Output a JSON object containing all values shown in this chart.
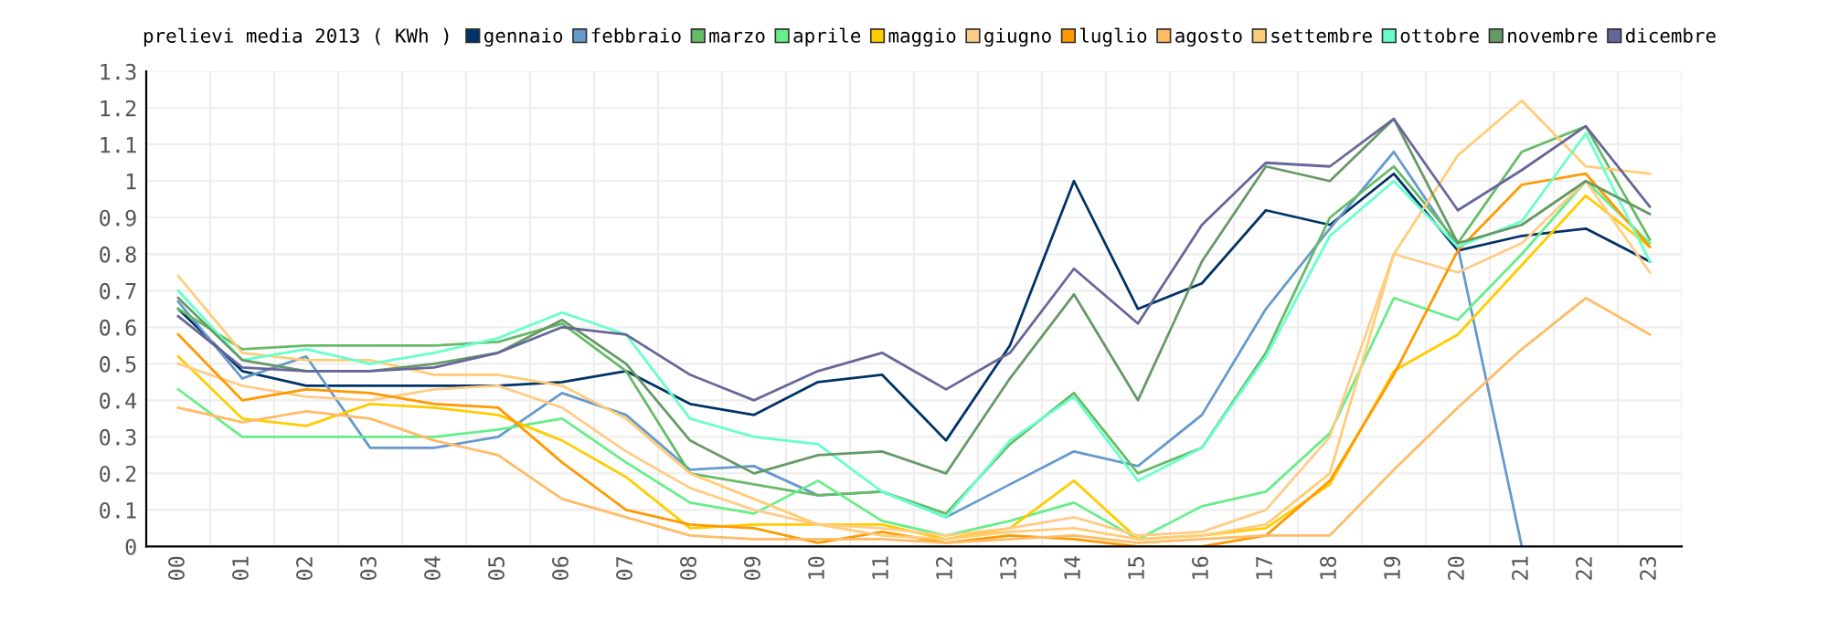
{
  "chart_data": {
    "type": "line",
    "title": "prelievi media 2013 ( KWh )",
    "categories": [
      "00",
      "01",
      "02",
      "03",
      "04",
      "05",
      "06",
      "07",
      "08",
      "09",
      "10",
      "11",
      "12",
      "13",
      "14",
      "15",
      "16",
      "17",
      "18",
      "19",
      "20",
      "21",
      "22",
      "23"
    ],
    "series": [
      {
        "name": "gennaio",
        "color": "#003366",
        "values": [
          0.65,
          0.48,
          0.44,
          0.44,
          0.44,
          0.44,
          0.45,
          0.48,
          0.39,
          0.36,
          0.45,
          0.47,
          0.29,
          0.55,
          1.0,
          0.65,
          0.72,
          0.92,
          0.88,
          1.02,
          0.81,
          0.85,
          0.87,
          0.78
        ]
      },
      {
        "name": "febbraio",
        "color": "#6699cc",
        "values": [
          0.67,
          0.46,
          0.52,
          0.27,
          0.27,
          0.3,
          0.42,
          0.36,
          0.21,
          0.22,
          0.14,
          0.15,
          0.08,
          0.17,
          0.26,
          0.22,
          0.36,
          0.65,
          0.87,
          1.08,
          0.82,
          0,
          null,
          null
        ]
      },
      {
        "name": "marzo",
        "color": "#66bb66",
        "values": [
          0.65,
          0.54,
          0.55,
          0.55,
          0.55,
          0.56,
          0.61,
          0.48,
          0.2,
          0.17,
          0.14,
          0.15,
          0.09,
          0.28,
          0.42,
          0.2,
          0.27,
          0.53,
          0.9,
          1.04,
          0.83,
          1.08,
          1.15,
          0.84
        ]
      },
      {
        "name": "aprile",
        "color": "#66ee88",
        "values": [
          0.43,
          0.3,
          0.3,
          0.3,
          0.3,
          0.32,
          0.35,
          0.23,
          0.12,
          0.09,
          0.18,
          0.07,
          0.03,
          0.07,
          0.12,
          0.02,
          0.11,
          0.15,
          0.31,
          0.68,
          0.62,
          0.8,
          1.0,
          0.83
        ]
      },
      {
        "name": "maggio",
        "color": "#ffcc00",
        "values": [
          0.52,
          0.35,
          0.33,
          0.39,
          0.38,
          0.36,
          0.29,
          0.19,
          0.05,
          0.06,
          0.06,
          0.06,
          0.02,
          0.05,
          0.18,
          0.02,
          0.03,
          0.05,
          0.17,
          0.48,
          0.58,
          0.77,
          0.96,
          0.82
        ]
      },
      {
        "name": "giugno",
        "color": "#ffcc88",
        "values": [
          0.5,
          0.44,
          0.41,
          0.4,
          0.43,
          0.44,
          0.38,
          0.26,
          0.16,
          0.1,
          0.06,
          0.05,
          0.03,
          0.05,
          0.08,
          0.03,
          0.04,
          0.1,
          0.3,
          0.8,
          0.75,
          0.83,
          1.0,
          0.75
        ]
      },
      {
        "name": "luglio",
        "color": "#ff9900",
        "values": [
          0.58,
          0.4,
          0.43,
          0.42,
          0.39,
          0.38,
          0.23,
          0.1,
          0.06,
          0.05,
          0.01,
          0.04,
          0.01,
          0.03,
          0.02,
          0.0,
          0.0,
          0.03,
          0.18,
          0.47,
          0.81,
          0.99,
          1.02,
          0.82
        ]
      },
      {
        "name": "agosto",
        "color": "#ffbb66",
        "values": [
          0.38,
          0.34,
          0.37,
          0.35,
          0.29,
          0.25,
          0.13,
          0.08,
          0.03,
          0.02,
          0.02,
          0.02,
          0.01,
          0.02,
          0.03,
          0.01,
          0.02,
          0.03,
          0.03,
          0.21,
          0.38,
          0.54,
          0.68,
          0.58
        ]
      },
      {
        "name": "settembre",
        "color": "#ffcc77",
        "values": [
          0.74,
          0.53,
          0.51,
          0.51,
          0.47,
          0.47,
          0.44,
          0.35,
          0.2,
          0.13,
          0.06,
          0.03,
          0.02,
          0.04,
          0.05,
          0.02,
          0.03,
          0.06,
          0.2,
          0.8,
          1.07,
          1.22,
          1.04,
          1.02
        ]
      },
      {
        "name": "ottobre",
        "color": "#66ffcc",
        "values": [
          0.7,
          0.51,
          0.54,
          0.5,
          0.53,
          0.57,
          0.64,
          0.58,
          0.35,
          0.3,
          0.28,
          0.15,
          0.08,
          0.29,
          0.41,
          0.18,
          0.27,
          0.52,
          0.85,
          1.0,
          0.82,
          0.89,
          1.13,
          0.78
        ]
      },
      {
        "name": "novembre",
        "color": "#669966",
        "values": [
          0.68,
          0.51,
          0.48,
          0.48,
          0.5,
          0.53,
          0.62,
          0.5,
          0.29,
          0.2,
          0.25,
          0.26,
          0.2,
          0.46,
          0.69,
          0.4,
          0.78,
          1.04,
          1.0,
          1.17,
          0.83,
          0.88,
          1.0,
          0.91
        ]
      },
      {
        "name": "dicembre",
        "color": "#666699",
        "values": [
          0.63,
          0.49,
          0.48,
          0.48,
          0.49,
          0.53,
          0.6,
          0.58,
          0.47,
          0.4,
          0.48,
          0.53,
          0.43,
          0.53,
          0.76,
          0.61,
          0.88,
          1.05,
          1.04,
          1.17,
          0.92,
          1.03,
          1.15,
          0.93
        ]
      }
    ],
    "ylim": [
      0,
      1.3
    ],
    "yticks": [
      0,
      0.1,
      0.2,
      0.3,
      0.4,
      0.5,
      0.6,
      0.7,
      0.8,
      0.9,
      1,
      1.1,
      1.2,
      1.3
    ],
    "grid": true,
    "legend": "top",
    "marker": "none",
    "line_style": "solid"
  }
}
